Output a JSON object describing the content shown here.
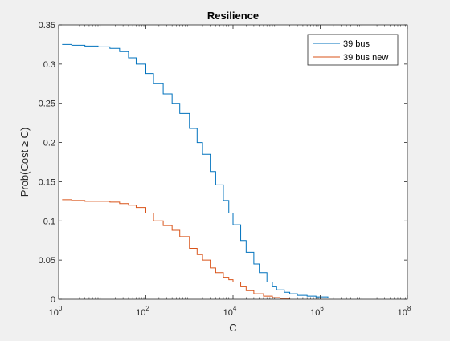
{
  "chart_data": {
    "type": "line",
    "title": "Resilience",
    "xlabel": "C",
    "ylabel": "Prob(Cost ≥ C)",
    "x_scale": "log",
    "xlim": [
      1,
      100000000
    ],
    "ylim": [
      0,
      0.35
    ],
    "x_ticks": [
      {
        "value": 1,
        "base": "10",
        "exp": "0"
      },
      {
        "value": 100,
        "base": "10",
        "exp": "2"
      },
      {
        "value": 10000,
        "base": "10",
        "exp": "4"
      },
      {
        "value": 1000000,
        "base": "10",
        "exp": "6"
      },
      {
        "value": 100000000,
        "base": "10",
        "exp": "8"
      }
    ],
    "y_ticks": [
      {
        "value": 0,
        "label": "0"
      },
      {
        "value": 0.05,
        "label": "0.05"
      },
      {
        "value": 0.1,
        "label": "0.1"
      },
      {
        "value": 0.15,
        "label": "0.15"
      },
      {
        "value": 0.2,
        "label": "0.2"
      },
      {
        "value": 0.25,
        "label": "0.25"
      },
      {
        "value": 0.3,
        "label": "0.3"
      },
      {
        "value": 0.35,
        "label": "0.35"
      }
    ],
    "grid": false,
    "legend_position": "top-right",
    "series": [
      {
        "name": "39 bus",
        "color": "#0072BD",
        "x": [
          1.2,
          2,
          4,
          8,
          15,
          25,
          40,
          60,
          100,
          150,
          250,
          400,
          600,
          1000,
          1500,
          2000,
          3000,
          4000,
          6000,
          8000,
          10000,
          15000,
          20000,
          30000,
          40000,
          60000,
          80000,
          100000,
          150000,
          200000,
          300000,
          500000,
          800000,
          1000000,
          1500000
        ],
        "y": [
          0.325,
          0.324,
          0.323,
          0.322,
          0.32,
          0.316,
          0.308,
          0.3,
          0.288,
          0.275,
          0.262,
          0.25,
          0.237,
          0.218,
          0.2,
          0.185,
          0.163,
          0.146,
          0.126,
          0.11,
          0.095,
          0.075,
          0.06,
          0.045,
          0.034,
          0.022,
          0.016,
          0.012,
          0.009,
          0.007,
          0.005,
          0.004,
          0.003,
          0.003,
          0.002
        ]
      },
      {
        "name": "39 bus new",
        "color": "#D95319",
        "x": [
          1.2,
          2,
          4,
          8,
          15,
          25,
          40,
          60,
          100,
          150,
          250,
          400,
          600,
          1000,
          1500,
          2000,
          3000,
          4000,
          6000,
          8000,
          10000,
          15000,
          20000,
          30000,
          50000,
          80000,
          120000,
          200000
        ],
        "y": [
          0.127,
          0.126,
          0.125,
          0.125,
          0.124,
          0.122,
          0.12,
          0.117,
          0.11,
          0.1,
          0.094,
          0.088,
          0.08,
          0.065,
          0.057,
          0.05,
          0.04,
          0.034,
          0.028,
          0.025,
          0.022,
          0.016,
          0.011,
          0.007,
          0.004,
          0.002,
          0.001,
          0.0
        ]
      }
    ]
  }
}
